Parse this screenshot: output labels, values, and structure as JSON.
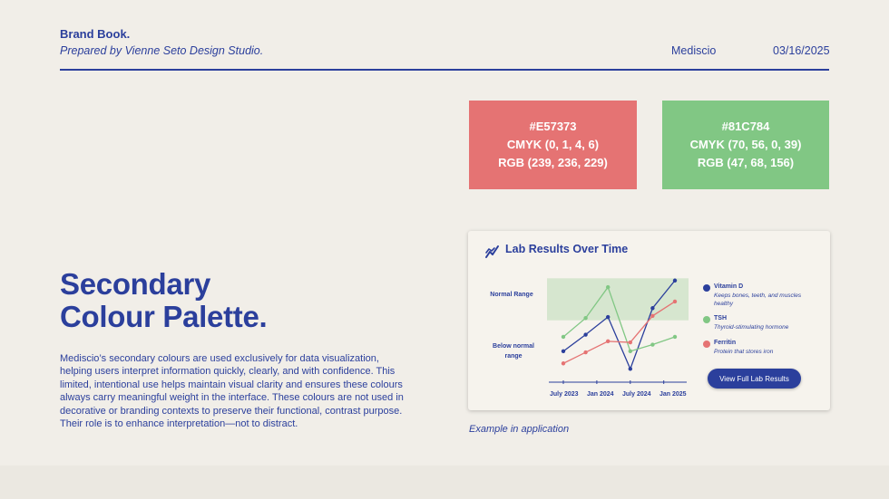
{
  "header": {
    "title": "Brand Book.",
    "subtitle": "Prepared by Vienne Seto Design Studio.",
    "company": "Mediscio",
    "date": "03/16/2025"
  },
  "swatches": [
    {
      "hex": "#E57373",
      "cmyk": "CMYK (0, 1, 4, 6)",
      "rgb": "RGB (239, 236, 229)",
      "color": "#e57373"
    },
    {
      "hex": "#81C784",
      "cmyk": "CMYK (70, 56, 0, 39)",
      "rgb": "RGB (47, 68, 156)",
      "color": "#81c784"
    }
  ],
  "section": {
    "heading_line1": "Secondary",
    "heading_line2": "Colour Palette.",
    "body": "Mediscio’s secondary colours are used exclusively for data visualization, helping users interpret information quickly, clearly, and with confidence. This limited, intentional use helps maintain visual clarity and ensures these colours always carry meaningful weight in the interface. These colours are not used in decorative or branding contexts to preserve their functional, contrast purpose. Their role is to enhance interpretation—not to distract."
  },
  "card": {
    "title": "Lab Results Over Time",
    "icon": "trend-chart-icon",
    "band_label_normal": "Normal Range",
    "band_label_below_1": "Below normal",
    "band_label_below_2": "range",
    "button_label": "View Full Lab Results",
    "caption": "Example in application"
  },
  "chart_data": {
    "type": "line",
    "title": "Lab Results Over Time",
    "x": [
      1,
      2,
      3,
      4,
      5,
      6
    ],
    "tick_labels": [
      "July 2023",
      "Jan 2024",
      "July 2024",
      "Jan 2025"
    ],
    "tick_positions": [
      1,
      2.5,
      4,
      5.5
    ],
    "band_labels": [
      "Normal Range",
      "Below normal range"
    ],
    "ylim": [
      0,
      10
    ],
    "shaded_band": [
      5.6,
      9.4
    ],
    "series": [
      {
        "name": "Vitamin D",
        "description": "Keeps bones, teeth, and muscles healthy",
        "color": "#2b3f9c",
        "values": [
          2.8,
          4.3,
          5.9,
          1.2,
          6.7,
          9.2
        ]
      },
      {
        "name": "TSH",
        "description": "Thyroid-stimulating hormone",
        "color": "#81c784",
        "values": [
          4.1,
          5.8,
          8.6,
          2.8,
          3.4,
          4.1
        ]
      },
      {
        "name": "Ferritin",
        "description": "Protein that stores iron",
        "color": "#e57373",
        "values": [
          1.7,
          2.7,
          3.7,
          3.6,
          6.0,
          7.3
        ]
      }
    ],
    "colors": {
      "band": "#d6e6cf",
      "axis": "#2b3f9c"
    }
  }
}
